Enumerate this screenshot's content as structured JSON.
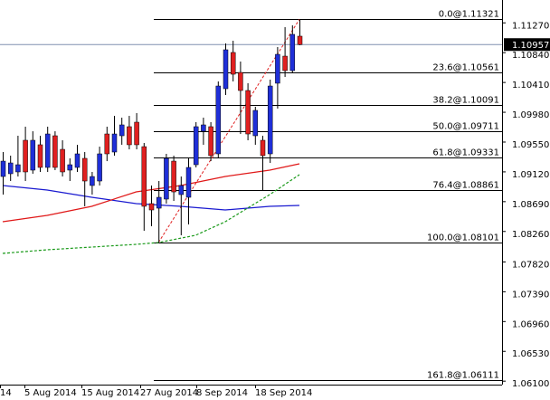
{
  "chart_data": {
    "type": "candlestick",
    "ylim": [
      1.0605,
      1.116
    ],
    "yticks": [
      {
        "value": 1.1127,
        "label": "1.11270"
      },
      {
        "value": 1.1084,
        "label": "1.10840"
      },
      {
        "value": 1.1041,
        "label": "1.10410"
      },
      {
        "value": 1.0998,
        "label": "1.09980"
      },
      {
        "value": 1.0955,
        "label": "1.09550"
      },
      {
        "value": 1.0912,
        "label": "1.09120"
      },
      {
        "value": 1.0869,
        "label": "1.08690"
      },
      {
        "value": 1.0826,
        "label": "1.08260"
      },
      {
        "value": 1.0782,
        "label": "1.07820"
      },
      {
        "value": 1.0739,
        "label": "1.07390"
      },
      {
        "value": 1.0696,
        "label": "1.06960"
      },
      {
        "value": 1.0653,
        "label": "1.06530"
      },
      {
        "value": 1.061,
        "label": "1.06100"
      }
    ],
    "xticks": [
      "14",
      "5 Aug 2014",
      "15 Aug 2014",
      "27 Aug 2014",
      "8 Sep 2014",
      "18 Sep 2014"
    ],
    "up_color": "#1f2fd8",
    "down_color": "#e02020",
    "open": [
      1.09053,
      1.09093,
      1.09119,
      1.09576,
      1.09145,
      1.09511,
      1.09184,
      1.09641,
      1.09445,
      1.09145,
      1.09184,
      1.09315,
      1.08923,
      1.08988,
      1.09667,
      1.09406,
      1.09641,
      1.09772,
      1.09837,
      1.09484,
      1.08662,
      1.08596,
      1.08727,
      1.09275,
      1.08792,
      1.08753,
      1.09223,
      1.09706,
      1.09772,
      1.0938,
      1.1032,
      1.10843,
      1.10555,
      1.10294,
      1.09641,
      1.09576,
      1.0938,
      1.10399,
      1.1079,
      1.10581,
      1.11078
    ],
    "high": [
      1.09406,
      1.09354,
      1.09641,
      1.09772,
      1.09706,
      1.09641,
      1.09772,
      1.09706,
      1.09576,
      1.09315,
      1.09511,
      1.09406,
      1.09119,
      1.09484,
      1.09772,
      1.09928,
      1.09902,
      1.09928,
      1.09968,
      1.09537,
      1.08923,
      1.08988,
      1.0938,
      1.09354,
      1.09053,
      1.09315,
      1.09837,
      1.09902,
      1.09837,
      1.10425,
      1.10973,
      1.11012,
      1.10712,
      1.10399,
      1.10059,
      1.09641,
      1.10451,
      1.10921,
      1.11208,
      1.11234,
      1.11321
    ],
    "low": [
      1.08792,
      1.08988,
      1.09053,
      1.08988,
      1.09093,
      1.09119,
      1.09119,
      1.09145,
      1.09053,
      1.08988,
      1.09119,
      1.08623,
      1.08792,
      1.08923,
      1.09275,
      1.09354,
      1.09511,
      1.09445,
      1.09445,
      1.0827,
      1.08335,
      1.08101,
      1.08662,
      1.08701,
      1.08205,
      1.08361,
      1.09184,
      1.09511,
      1.09275,
      1.09315,
      1.10229,
      1.10425,
      1.09667,
      1.09576,
      1.09511,
      1.08858,
      1.09249,
      1.10033,
      1.1049,
      1.10555,
      1.10947
    ],
    "close": [
      1.09275,
      1.09249,
      1.09223,
      1.09119,
      1.09576,
      1.09184,
      1.09667,
      1.09184,
      1.09119,
      1.09223,
      1.0938,
      1.08988,
      1.09053,
      1.0938,
      1.0938,
      1.09667,
      1.09798,
      1.09511,
      1.09511,
      1.08623,
      1.0857,
      1.08753,
      1.09315,
      1.08831,
      1.08923,
      1.09184,
      1.09772,
      1.09798,
      1.09354,
      1.10359,
      1.10882,
      1.10529,
      1.10294,
      1.09667,
      1.10007,
      1.09354,
      1.10359,
      1.10816,
      1.10581,
      1.11104,
      1.10957
    ],
    "lines": [
      {
        "color": "#1a1ad0",
        "dashed": false,
        "x": [
          0,
          6,
          12,
          18,
          24,
          30,
          36,
          40
        ],
        "values": [
          1.08923,
          1.08858,
          1.08753,
          1.08662,
          1.08623,
          1.0857,
          1.08623,
          1.08636
        ]
      },
      {
        "color": "#e01818",
        "dashed": false,
        "x": [
          0,
          6,
          12,
          18,
          24,
          30,
          36,
          40
        ],
        "values": [
          1.08401,
          1.08492,
          1.08623,
          1.08831,
          1.08923,
          1.09053,
          1.09145,
          1.09236
        ]
      },
      {
        "color": "#1a9a1a",
        "dashed": true,
        "x": [
          0,
          6,
          12,
          18,
          21,
          26,
          30,
          36,
          40
        ],
        "values": [
          1.07943,
          1.07996,
          1.08035,
          1.08074,
          1.081,
          1.08205,
          1.08401,
          1.08792,
          1.0908
        ]
      }
    ],
    "levels": [
      {
        "label": "0.0@1.11321",
        "value": 1.11321
      },
      {
        "label": "23.6@1.10561",
        "value": 1.10561
      },
      {
        "label": "38.2@1.10091",
        "value": 1.10091
      },
      {
        "label": "50.0@1.09711",
        "value": 1.09711
      },
      {
        "label": "61.8@1.09331",
        "value": 1.09331
      },
      {
        "label": "76.4@1.08861",
        "value": 1.08861
      },
      {
        "label": "100.0@1.08101",
        "value": 1.08101
      },
      {
        "label": "161.8@1.06111",
        "value": 1.06111
      }
    ],
    "last": {
      "value": 1.10957,
      "label": "1.10957"
    }
  }
}
